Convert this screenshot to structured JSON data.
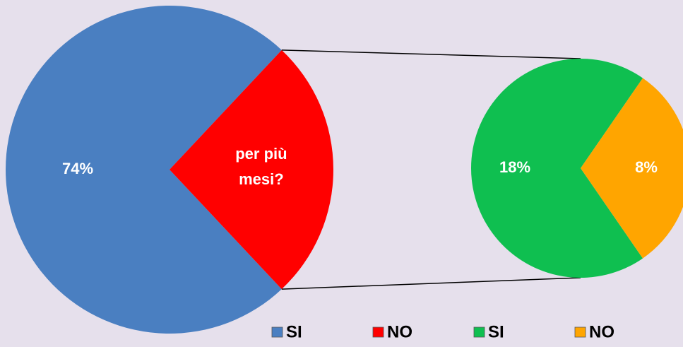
{
  "chart_data": {
    "type": "pie",
    "slices": [
      {
        "name": "SI",
        "color": "#4a7fc1",
        "value": 74,
        "value_label": "74%"
      },
      {
        "name": "NO",
        "color": "#ff0000",
        "value": 26,
        "annotation": "per più mesi?",
        "breakdown": [
          {
            "name": "SI",
            "color": "#0fbf50",
            "value": 18,
            "value_label": "18%"
          },
          {
            "name": "NO",
            "color": "#ffa500",
            "value": 8,
            "value_label": "8%"
          }
        ]
      }
    ]
  }
}
